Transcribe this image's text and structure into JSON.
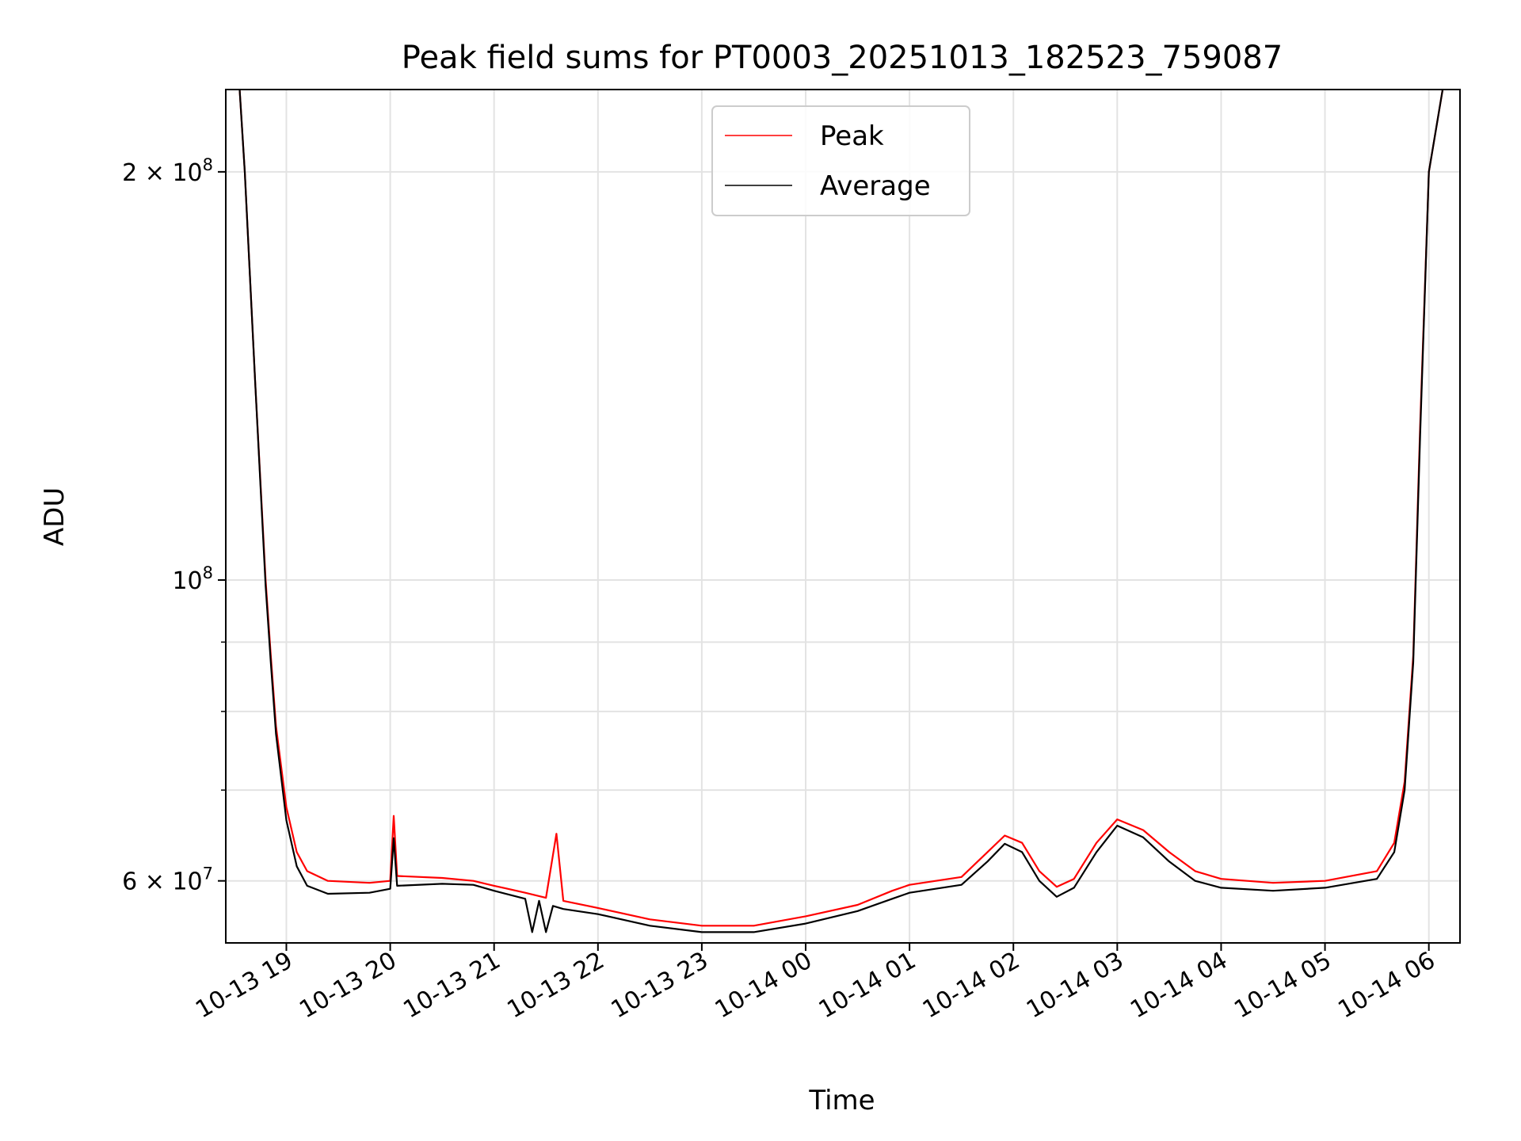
{
  "chart_data": {
    "type": "line",
    "title": "Peak field sums for PT0003_20251013_182523_759087",
    "xlabel": "Time",
    "ylabel": "ADU",
    "x_tick_labels": [
      "10-13 19",
      "10-13 20",
      "10-13 21",
      "10-13 22",
      "10-13 23",
      "10-14 00",
      "10-14 01",
      "10-14 02",
      "10-14 03",
      "10-14 04",
      "10-14 05",
      "10-14 06"
    ],
    "x_ticks": [
      "2025-10-13T19:00",
      "2025-10-13T20:00",
      "2025-10-13T21:00",
      "2025-10-13T22:00",
      "2025-10-13T23:00",
      "2025-10-14T00:00",
      "2025-10-14T01:00",
      "2025-10-14T02:00",
      "2025-10-14T03:00",
      "2025-10-14T04:00",
      "2025-10-14T05:00",
      "2025-10-14T06:00"
    ],
    "xlim": [
      "2025-10-13T18:25",
      "2025-10-14T06:18"
    ],
    "y_scale": "log",
    "ylim": [
      54000000,
      230000000
    ],
    "y_tick_labels": [
      {
        "value": 60000000,
        "mantissa": "6",
        "base": "10",
        "exponent": "7"
      },
      {
        "value": 100000000,
        "mantissa": "",
        "base": "10",
        "exponent": "8"
      },
      {
        "value": 200000000,
        "mantissa": "2",
        "base": "10",
        "exponent": "8"
      }
    ],
    "y_minor_ticks": [
      70000000,
      80000000,
      90000000
    ],
    "grid": true,
    "legend": {
      "position": "top-center",
      "entries": [
        "Peak",
        "Average"
      ]
    },
    "series": [
      {
        "name": "Peak",
        "color": "#ff0000",
        "points": [
          [
            "2025-10-13T18:33",
            230000000
          ],
          [
            "2025-10-13T18:36",
            200000000
          ],
          [
            "2025-10-13T18:42",
            140000000
          ],
          [
            "2025-10-13T18:48",
            100000000
          ],
          [
            "2025-10-13T18:51",
            88000000
          ],
          [
            "2025-10-13T18:54",
            78000000
          ],
          [
            "2025-10-13T19:00",
            68000000
          ],
          [
            "2025-10-13T19:06",
            63000000
          ],
          [
            "2025-10-13T19:12",
            61000000
          ],
          [
            "2025-10-13T19:24",
            60000000
          ],
          [
            "2025-10-13T19:48",
            59800000
          ],
          [
            "2025-10-13T20:00",
            60000000
          ],
          [
            "2025-10-13T20:02",
            67000000
          ],
          [
            "2025-10-13T20:04",
            60500000
          ],
          [
            "2025-10-13T20:30",
            60300000
          ],
          [
            "2025-10-13T20:48",
            60000000
          ],
          [
            "2025-10-13T21:00",
            59500000
          ],
          [
            "2025-10-13T21:18",
            58800000
          ],
          [
            "2025-10-13T21:30",
            58300000
          ],
          [
            "2025-10-13T21:36",
            65000000
          ],
          [
            "2025-10-13T21:40",
            58000000
          ],
          [
            "2025-10-13T22:00",
            57300000
          ],
          [
            "2025-10-13T22:30",
            56200000
          ],
          [
            "2025-10-13T23:00",
            55600000
          ],
          [
            "2025-10-13T23:30",
            55600000
          ],
          [
            "2025-10-14T00:00",
            56500000
          ],
          [
            "2025-10-14T00:30",
            57600000
          ],
          [
            "2025-10-14T00:50",
            59000000
          ],
          [
            "2025-10-14T01:00",
            59600000
          ],
          [
            "2025-10-14T01:30",
            60400000
          ],
          [
            "2025-10-14T01:45",
            63000000
          ],
          [
            "2025-10-14T01:55",
            64800000
          ],
          [
            "2025-10-14T02:05",
            64000000
          ],
          [
            "2025-10-14T02:15",
            61000000
          ],
          [
            "2025-10-14T02:25",
            59400000
          ],
          [
            "2025-10-14T02:35",
            60200000
          ],
          [
            "2025-10-14T02:48",
            64000000
          ],
          [
            "2025-10-14T03:00",
            66600000
          ],
          [
            "2025-10-14T03:15",
            65400000
          ],
          [
            "2025-10-14T03:30",
            63000000
          ],
          [
            "2025-10-14T03:45",
            61000000
          ],
          [
            "2025-10-14T04:00",
            60200000
          ],
          [
            "2025-10-14T04:30",
            59800000
          ],
          [
            "2025-10-14T05:00",
            60000000
          ],
          [
            "2025-10-14T05:30",
            61000000
          ],
          [
            "2025-10-14T05:40",
            64000000
          ],
          [
            "2025-10-14T05:46",
            71000000
          ],
          [
            "2025-10-14T05:51",
            88000000
          ],
          [
            "2025-10-14T05:55",
            130000000
          ],
          [
            "2025-10-14T06:00",
            200000000
          ],
          [
            "2025-10-14T06:08",
            230000000
          ]
        ]
      },
      {
        "name": "Average",
        "color": "#000000",
        "points": [
          [
            "2025-10-13T18:33",
            230000000
          ],
          [
            "2025-10-13T18:36",
            200000000
          ],
          [
            "2025-10-13T18:42",
            140000000
          ],
          [
            "2025-10-13T18:48",
            99000000
          ],
          [
            "2025-10-13T18:51",
            87000000
          ],
          [
            "2025-10-13T18:54",
            77000000
          ],
          [
            "2025-10-13T19:00",
            66500000
          ],
          [
            "2025-10-13T19:06",
            61500000
          ],
          [
            "2025-10-13T19:12",
            59500000
          ],
          [
            "2025-10-13T19:24",
            58700000
          ],
          [
            "2025-10-13T19:48",
            58800000
          ],
          [
            "2025-10-13T20:00",
            59200000
          ],
          [
            "2025-10-13T20:02",
            64500000
          ],
          [
            "2025-10-13T20:04",
            59500000
          ],
          [
            "2025-10-13T20:30",
            59700000
          ],
          [
            "2025-10-13T20:48",
            59600000
          ],
          [
            "2025-10-13T21:00",
            59000000
          ],
          [
            "2025-10-13T21:18",
            58200000
          ],
          [
            "2025-10-13T21:22",
            55000000
          ],
          [
            "2025-10-13T21:26",
            58000000
          ],
          [
            "2025-10-13T21:30",
            55000000
          ],
          [
            "2025-10-13T21:34",
            57500000
          ],
          [
            "2025-10-13T21:40",
            57200000
          ],
          [
            "2025-10-13T22:00",
            56700000
          ],
          [
            "2025-10-13T22:30",
            55600000
          ],
          [
            "2025-10-13T23:00",
            55000000
          ],
          [
            "2025-10-13T23:30",
            55000000
          ],
          [
            "2025-10-14T00:00",
            55800000
          ],
          [
            "2025-10-14T00:30",
            57000000
          ],
          [
            "2025-10-14T00:50",
            58200000
          ],
          [
            "2025-10-14T01:00",
            58800000
          ],
          [
            "2025-10-14T01:30",
            59600000
          ],
          [
            "2025-10-14T01:45",
            62000000
          ],
          [
            "2025-10-14T01:55",
            63900000
          ],
          [
            "2025-10-14T02:05",
            63000000
          ],
          [
            "2025-10-14T02:15",
            60000000
          ],
          [
            "2025-10-14T02:25",
            58400000
          ],
          [
            "2025-10-14T02:35",
            59300000
          ],
          [
            "2025-10-14T02:48",
            63000000
          ],
          [
            "2025-10-14T03:00",
            65900000
          ],
          [
            "2025-10-14T03:15",
            64600000
          ],
          [
            "2025-10-14T03:30",
            62000000
          ],
          [
            "2025-10-14T03:45",
            60000000
          ],
          [
            "2025-10-14T04:00",
            59300000
          ],
          [
            "2025-10-14T04:30",
            59000000
          ],
          [
            "2025-10-14T05:00",
            59300000
          ],
          [
            "2025-10-14T05:30",
            60200000
          ],
          [
            "2025-10-14T05:40",
            63000000
          ],
          [
            "2025-10-14T05:46",
            70000000
          ],
          [
            "2025-10-14T05:51",
            87000000
          ],
          [
            "2025-10-14T05:55",
            128000000
          ],
          [
            "2025-10-14T06:00",
            200000000
          ],
          [
            "2025-10-14T06:08",
            230000000
          ]
        ]
      }
    ]
  }
}
